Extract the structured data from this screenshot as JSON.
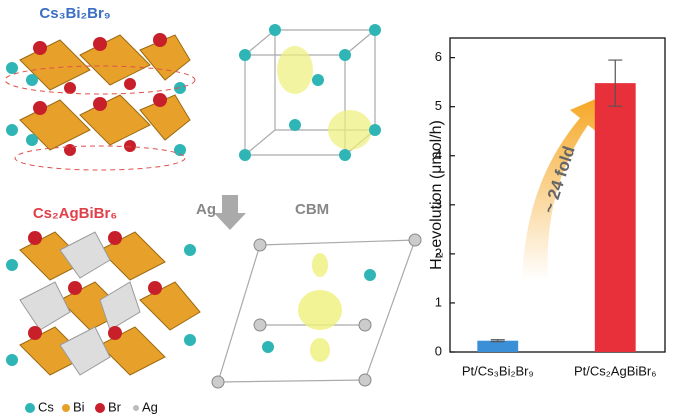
{
  "chart_data": {
    "type": "bar",
    "ylabel": "H₂ evolution (μmol/h)",
    "annotation": "~ 24 fold",
    "categories": [
      "Pt/Cs₃Bi₂Br₉",
      "Pt/Cs₂AgBiBr₆"
    ],
    "values": [
      0.23,
      5.48
    ],
    "errors": [
      0.02,
      0.47
    ],
    "colors": [
      "#3a8fd6",
      "#e8303a"
    ],
    "ylim": [
      0,
      6.4
    ],
    "yticks": [
      0,
      1,
      2,
      3,
      4,
      5,
      6
    ]
  },
  "illustration": {
    "top_label": "Cs₃Bi₂Br₉",
    "bottom_label": "Cs₂AgBiBr₆",
    "arrow_label": "Ag",
    "orbital_label": "CBM",
    "legend": [
      "Cs",
      "Bi",
      "Br",
      "Ag"
    ]
  }
}
